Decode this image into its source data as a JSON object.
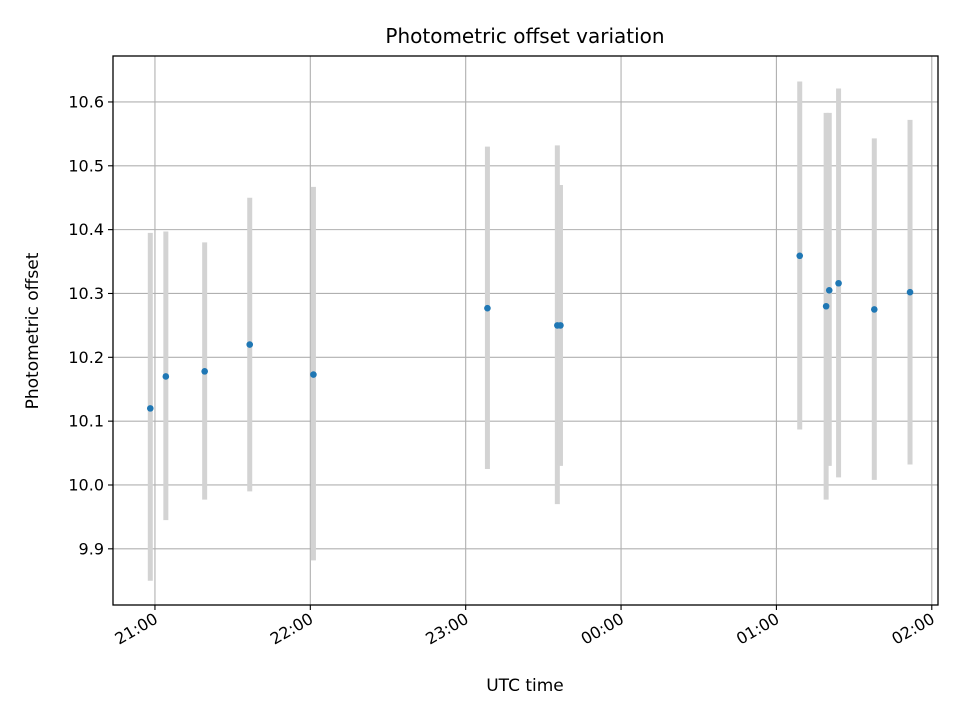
{
  "chart_data": {
    "type": "scatter",
    "title": "Photometric offset variation",
    "xlabel": "UTC time",
    "ylabel": "Photometric offset",
    "x_axis_kind": "time",
    "x_ticks": [
      "21:00",
      "22:00",
      "23:00",
      "00:00",
      "01:00",
      "02:00"
    ],
    "x_tick_hours": [
      21,
      22,
      23,
      24,
      25,
      26
    ],
    "xlim_hours": [
      20.73,
      26.04
    ],
    "y_ticks": [
      9.9,
      10.0,
      10.1,
      10.2,
      10.3,
      10.4,
      10.5,
      10.6
    ],
    "y_tick_labels": [
      "9.9",
      "10.0",
      "10.1",
      "10.2",
      "10.3",
      "10.4",
      "10.5",
      "10.6"
    ],
    "ylim": [
      9.812,
      10.672
    ],
    "grid": true,
    "errorbar_color": "#d3d3d3",
    "marker_color": "#1f77b4",
    "points": [
      {
        "time": "20:58",
        "hour": 20.97,
        "value": 10.12,
        "low": 9.85,
        "high": 10.395
      },
      {
        "time": "21:04",
        "hour": 21.07,
        "value": 10.17,
        "low": 9.945,
        "high": 10.397
      },
      {
        "time": "21:19",
        "hour": 21.32,
        "value": 10.178,
        "low": 9.977,
        "high": 10.38
      },
      {
        "time": "21:37",
        "hour": 21.61,
        "value": 10.22,
        "low": 9.99,
        "high": 10.45
      },
      {
        "time": "22:01",
        "hour": 22.02,
        "value": 10.173,
        "low": 9.882,
        "high": 10.467
      },
      {
        "time": "23:09",
        "hour": 23.14,
        "value": 10.277,
        "low": 10.025,
        "high": 10.53
      },
      {
        "time": "23:35",
        "hour": 23.59,
        "value": 10.25,
        "low": 9.97,
        "high": 10.532
      },
      {
        "time": "23:37",
        "hour": 23.61,
        "value": 10.25,
        "low": 10.03,
        "high": 10.47
      },
      {
        "time": "01:09",
        "hour": 25.15,
        "value": 10.359,
        "low": 10.087,
        "high": 10.632
      },
      {
        "time": "01:19",
        "hour": 25.32,
        "value": 10.28,
        "low": 9.977,
        "high": 10.583
      },
      {
        "time": "01:20",
        "hour": 25.34,
        "value": 10.305,
        "low": 10.03,
        "high": 10.583
      },
      {
        "time": "01:24",
        "hour": 25.4,
        "value": 10.316,
        "low": 10.012,
        "high": 10.621
      },
      {
        "time": "01:37",
        "hour": 25.63,
        "value": 10.275,
        "low": 10.008,
        "high": 10.543
      },
      {
        "time": "01:52",
        "hour": 25.86,
        "value": 10.302,
        "low": 10.032,
        "high": 10.572
      }
    ]
  }
}
